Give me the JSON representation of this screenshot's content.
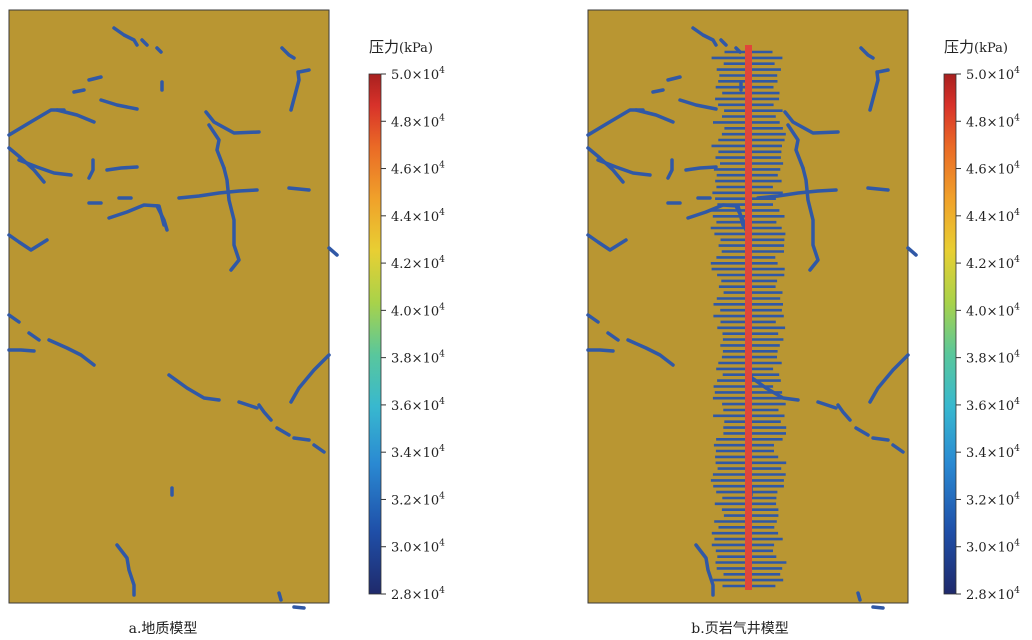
{
  "panels": [
    {
      "caption": "a.地质模型",
      "colorbar_title_cn": "压力",
      "colorbar_title_unit": "(kPa)"
    },
    {
      "caption": "b.页岩气井模型",
      "colorbar_title_cn": "压力",
      "colorbar_title_unit": "(kPa)"
    }
  ],
  "colorbar": {
    "tick_mantissas": [
      "5.0",
      "4.8",
      "4.6",
      "4.4",
      "4.2",
      "4.0",
      "3.8",
      "3.6",
      "3.4",
      "3.2",
      "3.0",
      "2.8"
    ],
    "multiplier": "×10",
    "exponent": "4",
    "colors": [
      "#1f2a6b",
      "#1f4fa8",
      "#2a89d2",
      "#38b8cf",
      "#59c79c",
      "#a8d24a",
      "#e8cf33",
      "#f0a12a",
      "#ea6a26",
      "#d8322a",
      "#a8201f"
    ]
  },
  "colors": {
    "model_background": "#b99632",
    "fracture": "#3058a6",
    "wellbore": "#e0463a"
  }
}
